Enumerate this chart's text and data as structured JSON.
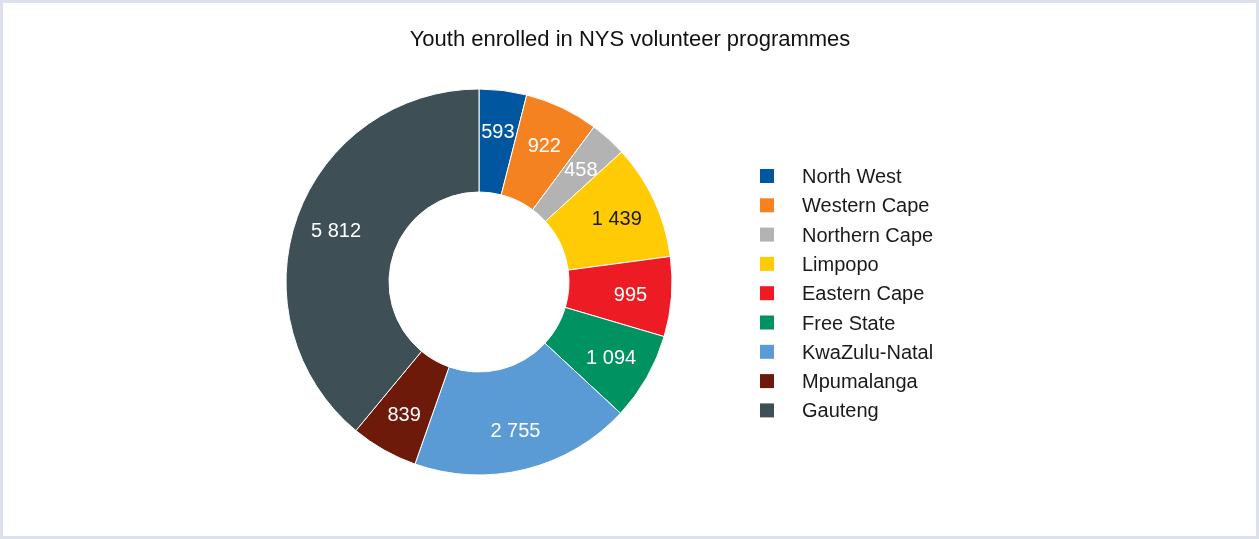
{
  "chart_data": {
    "type": "donut",
    "title": "Youth enrolled in NYS volunteer programmes",
    "categories": [
      "North West",
      "Western Cape",
      "Northern Cape",
      "Limpopo",
      "Eastern Cape",
      "Free State",
      "KwaZulu-Natal",
      "Mpumalanga",
      "Gauteng"
    ],
    "values": [
      593,
      922,
      458,
      1439,
      995,
      1094,
      2755,
      839,
      5812
    ],
    "value_labels": [
      "593",
      "922",
      "458",
      "1 439",
      "995",
      "1 094",
      "2 755",
      "839",
      "5 812"
    ],
    "colors": [
      "#0057a0",
      "#f58220",
      "#b3b3b3",
      "#ffcb05",
      "#ed1c24",
      "#009260",
      "#5b9bd5",
      "#6d1a0a",
      "#3f4f56"
    ],
    "legend": "right"
  }
}
